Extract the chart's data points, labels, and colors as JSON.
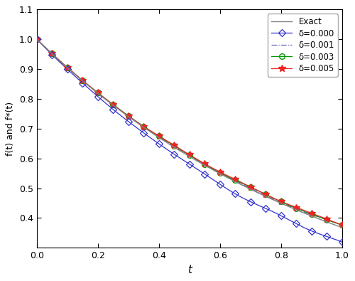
{
  "xlabel": "t",
  "ylabel": "f(t) and f*(t)",
  "xlim": [
    0,
    1
  ],
  "ylim": [
    0.3,
    1.1
  ],
  "yticks": [
    0.4,
    0.5,
    0.6,
    0.7,
    0.8,
    0.9,
    1.0,
    1.1
  ],
  "xticks": [
    0,
    0.2,
    0.4,
    0.6,
    0.8,
    1.0
  ],
  "n_points": 500,
  "marker_points": 21,
  "exact_color": "#808080",
  "delta0_color": "#3333cc",
  "delta1_color": "#6666bb",
  "delta3_color": "#009900",
  "delta5_color": "#ee2222",
  "legend_labels": [
    "Exact",
    "δ=0.000",
    "δ=0.001",
    "δ=0.003",
    "δ=0.005"
  ],
  "bias_delta0": -0.055,
  "bias_delta1": 0.005,
  "bias_delta3": 0.008,
  "bias_delta5": 0.01,
  "osc_amp_delta0": 0.008,
  "osc_amp_delta1": 0.003,
  "osc_amp_delta3": 0.004,
  "osc_amp_delta5": 0.005
}
